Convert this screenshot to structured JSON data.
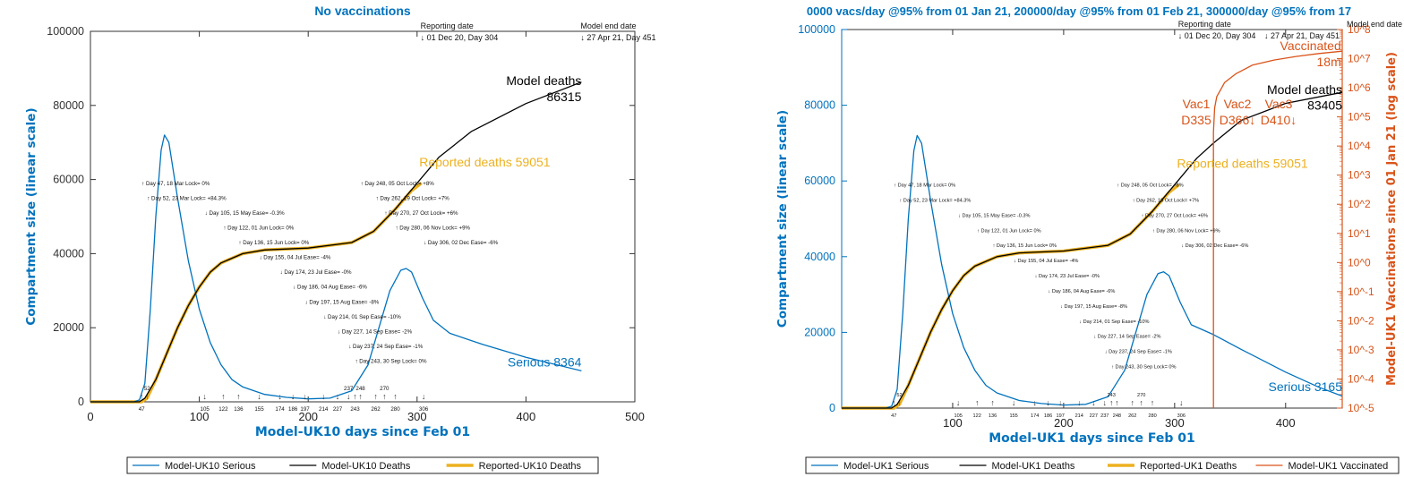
{
  "colors": {
    "serious": "#0072BD",
    "deaths": "#000000",
    "reported": "#EDB120",
    "vaccinated": "#D95319",
    "axis_left": "#0072BD"
  },
  "chart_data": [
    {
      "type": "line",
      "title": "No vaccinations",
      "xlabel": "Model-UK10 days since Feb 01",
      "ylabel": "Compartment size (linear scale)",
      "xlim": [
        0,
        500
      ],
      "ylim": [
        0,
        100000
      ],
      "xticks": [
        0,
        100,
        200,
        300,
        400,
        500
      ],
      "yticks": [
        0,
        20000,
        40000,
        60000,
        80000,
        100000
      ],
      "grid": false,
      "legend_position": "bottom",
      "legend": [
        "Model-UK10 Serious",
        "Model-UK10 Deaths",
        "Reported-UK10 Deaths"
      ],
      "series": [
        {
          "name": "Model-UK10 Serious",
          "x": [
            0,
            40,
            45,
            50,
            55,
            60,
            65,
            68,
            72,
            80,
            90,
            100,
            110,
            120,
            130,
            140,
            160,
            180,
            200,
            220,
            240,
            255,
            265,
            275,
            285,
            290,
            295,
            305,
            315,
            330,
            360,
            400,
            451
          ],
          "y": [
            0,
            0,
            500,
            5000,
            25000,
            50000,
            68000,
            72000,
            70000,
            55000,
            38000,
            25000,
            16000,
            10000,
            6000,
            4000,
            2000,
            1200,
            800,
            1000,
            3000,
            10000,
            20000,
            30000,
            35500,
            36000,
            35000,
            28000,
            22000,
            18500,
            15500,
            12000,
            8364
          ]
        },
        {
          "name": "Model-UK10 Deaths",
          "x": [
            0,
            45,
            50,
            60,
            70,
            80,
            90,
            100,
            110,
            120,
            140,
            160,
            200,
            240,
            260,
            280,
            300,
            320,
            350,
            400,
            451
          ],
          "y": [
            0,
            0,
            1000,
            6000,
            13000,
            20000,
            26000,
            31000,
            35000,
            37500,
            40000,
            41000,
            41500,
            43000,
            46000,
            52000,
            59000,
            66000,
            73000,
            80500,
            86315
          ]
        },
        {
          "name": "Reported-UK10 Deaths",
          "x": [
            0,
            47,
            52,
            60,
            70,
            80,
            90,
            100,
            110,
            120,
            140,
            160,
            200,
            240,
            260,
            280,
            295,
            304
          ],
          "y": [
            0,
            0,
            1000,
            6000,
            13000,
            20000,
            26000,
            31000,
            35000,
            37500,
            40000,
            41000,
            41500,
            43000,
            46000,
            52000,
            57000,
            59051
          ]
        }
      ],
      "annotations": {
        "reporting_date": {
          "label": "Reporting date",
          "value": "↓ 01 Dec 20, Day 304",
          "day": 304
        },
        "model_end": {
          "label": "Model end date",
          "value": "↓ 27 Apr 21, Day 451",
          "day": 451
        },
        "deaths_label": [
          "Model deaths",
          "86315"
        ],
        "reported_label": "Reported deaths 59051",
        "serious_label": "Serious 8364"
      }
    },
    {
      "type": "line",
      "title": "0000 vacs/day @95% from 01 Jan 21, 200000/day @95% from 01 Feb 21, 300000/day @95% from 17",
      "xlabel": "Model-UK1 days since Feb 01",
      "ylabel": "Compartment size (linear scale)",
      "ylabel_right": "Model-UK1 Vaccinations since 01 Jan 21 (log scale)",
      "xlim": [
        0,
        451
      ],
      "ylim": [
        0,
        100000
      ],
      "ylim_right": [
        1e-05,
        100000000.0
      ],
      "yscale_right": "log",
      "xticks": [
        100,
        200,
        300,
        400
      ],
      "yticks": [
        0,
        20000,
        40000,
        60000,
        80000,
        100000
      ],
      "yticks_right": [
        "10^-5",
        "10^-4",
        "10^-3",
        "10^-2",
        "10^-1",
        "10^0",
        "10^1",
        "10^2",
        "10^3",
        "10^4",
        "10^5",
        "10^6",
        "10^7",
        "10^8"
      ],
      "grid": false,
      "legend_position": "bottom",
      "legend": [
        "Model-UK1 Serious",
        "Model-UK1 Deaths",
        "Reported-UK1 Deaths",
        "Model-UK1 Vaccinated"
      ],
      "series": [
        {
          "name": "Model-UK1 Serious",
          "x": [
            0,
            40,
            45,
            50,
            55,
            60,
            65,
            68,
            72,
            80,
            90,
            100,
            110,
            120,
            130,
            140,
            160,
            180,
            200,
            220,
            240,
            255,
            265,
            275,
            285,
            290,
            295,
            305,
            315,
            335,
            360,
            400,
            430,
            451
          ],
          "y": [
            0,
            0,
            500,
            5000,
            25000,
            50000,
            68000,
            72000,
            70000,
            55000,
            38000,
            25000,
            16000,
            10000,
            6000,
            4000,
            2000,
            1200,
            800,
            1000,
            3000,
            10000,
            20000,
            30000,
            35500,
            36000,
            35000,
            28000,
            22000,
            19400,
            15500,
            9500,
            5500,
            3165
          ]
        },
        {
          "name": "Model-UK1 Deaths",
          "x": [
            0,
            45,
            50,
            60,
            70,
            80,
            90,
            100,
            110,
            120,
            140,
            160,
            200,
            240,
            260,
            280,
            300,
            320,
            335,
            360,
            400,
            451
          ],
          "y": [
            0,
            0,
            1000,
            6000,
            13000,
            20000,
            26000,
            31000,
            35000,
            37500,
            40000,
            41000,
            41500,
            43000,
            46000,
            52000,
            59000,
            66000,
            70000,
            76000,
            80500,
            83405
          ]
        },
        {
          "name": "Reported-UK1 Deaths",
          "x": [
            0,
            47,
            52,
            60,
            70,
            80,
            90,
            100,
            110,
            120,
            140,
            160,
            200,
            240,
            260,
            280,
            295,
            304
          ],
          "y": [
            0,
            0,
            1000,
            6000,
            13000,
            20000,
            26000,
            31000,
            35000,
            37500,
            40000,
            41000,
            41500,
            43000,
            46000,
            52000,
            57000,
            59051
          ]
        },
        {
          "name": "Model-UK1 Vaccinated",
          "axis": "right",
          "x": [
            335,
            335,
            336,
            338,
            341,
            345,
            355,
            370,
            390,
            410,
            430,
            451
          ],
          "y": [
            1e-05,
            30000,
            200000,
            500000,
            800000,
            1500000,
            3000000,
            6000000,
            9000000,
            12000000,
            15000000,
            18000000
          ]
        }
      ],
      "annotations": {
        "reporting_date": {
          "label": "Reporting date",
          "value": "↓ 01 Dec 20, Day 304",
          "day": 304
        },
        "model_end": {
          "label": "Model end date",
          "value": "↓ 27 Apr 21, Day 451",
          "day": 451
        },
        "deaths_label": [
          "Model deaths",
          "83405"
        ],
        "reported_label": "Reported deaths 59051",
        "serious_label": "Serious 3165",
        "vaccinated_label": [
          "Vaccinated",
          "18m"
        ],
        "vac_labels": [
          [
            "Vac1",
            "D335"
          ],
          [
            "Vac2",
            "D366↓"
          ],
          [
            "Vac3",
            "D410↓"
          ]
        ]
      }
    }
  ],
  "interventions": [
    {
      "day": 47,
      "dir": "up",
      "text": "Day 47, 18 Mar Lock= 0%"
    },
    {
      "day": 52,
      "dir": "up",
      "text": "Day 52, 23 Mar Lock= +84.3%"
    },
    {
      "day": 105,
      "dir": "down",
      "text": "Day 105, 15 May Ease= -0.3%"
    },
    {
      "day": 122,
      "dir": "up",
      "text": "Day 122, 01 Jun Lock= 0%"
    },
    {
      "day": 136,
      "dir": "up",
      "text": "Day 136, 15 Jun Lock= 0%"
    },
    {
      "day": 155,
      "dir": "down",
      "text": "Day 155, 04 Jul Ease= -4%"
    },
    {
      "day": 174,
      "dir": "down",
      "text": "Day 174, 23 Jul Ease= -0%"
    },
    {
      "day": 186,
      "dir": "down",
      "text": "Day 186, 04 Aug Ease= -6%"
    },
    {
      "day": 197,
      "dir": "down",
      "text": "Day 197, 15 Aug Ease= -8%"
    },
    {
      "day": 214,
      "dir": "down",
      "text": "Day 214, 01 Sep Ease= -10%"
    },
    {
      "day": 227,
      "dir": "down",
      "text": "Day 227, 14 Sep Ease= -2%"
    },
    {
      "day": 237,
      "dir": "down",
      "text": "Day 237, 24 Sep Ease= -1%"
    },
    {
      "day": 243,
      "dir": "up",
      "text": "Day 243, 30 Sep Lock= 0%"
    },
    {
      "day": 248,
      "dir": "up",
      "text": "Day 248, 05 Oct Lock= +8%"
    },
    {
      "day": 262,
      "dir": "up",
      "text": "Day 262, 19 Oct Lock= +7%"
    },
    {
      "day": 270,
      "dir": "up",
      "text": "Day 270, 27 Oct Lock= +6%"
    },
    {
      "day": 280,
      "dir": "up",
      "text": "Day 280, 06 Nov Lock= +9%"
    },
    {
      "day": 306,
      "dir": "down",
      "text": "Day 306, 02 Dec Ease= -6%"
    }
  ]
}
